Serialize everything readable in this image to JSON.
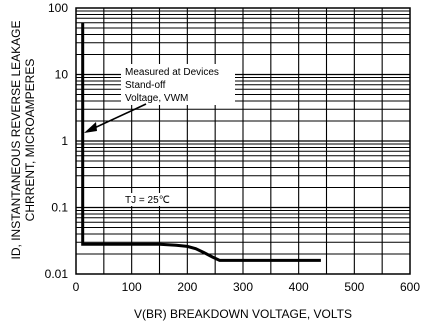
{
  "chart_data": {
    "type": "line",
    "x_scale": "linear",
    "y_scale": "log",
    "xlim": [
      0,
      600
    ],
    "ylim": [
      0.01,
      100
    ],
    "x_ticks": [
      0,
      100,
      200,
      300,
      400,
      500,
      600
    ],
    "y_ticks": [
      0.01,
      0.1,
      1,
      10,
      100
    ],
    "x_tick_labels": [
      "0",
      "100",
      "200",
      "300",
      "400",
      "500",
      "600"
    ],
    "y_tick_labels": [
      "0.01",
      "0.1",
      "1",
      "10",
      "100"
    ],
    "xlabel": "V(BR) BREAKDOWN VOLTAGE, VOLTS",
    "ylabel_line1": "ID, INSTANTANEOUS REVERSE LEAKAGE",
    "ylabel_line2": "CHRRENT, MICROAMPERES",
    "grid": true,
    "series": [
      {
        "x": [
          12,
          12,
          18,
          40,
          100,
          150,
          180,
          200,
          215,
          230,
          245,
          258,
          300,
          350,
          400,
          440
        ],
        "y": [
          60,
          0.028,
          0.028,
          0.028,
          0.028,
          0.028,
          0.027,
          0.026,
          0.024,
          0.021,
          0.018,
          0.016,
          0.016,
          0.016,
          0.016,
          0.016
        ]
      }
    ],
    "annotations": {
      "callout_line1": "Measured at Devices",
      "callout_line2": "Stand-off",
      "callout_line3": "Voltage, VWM",
      "temperature": "TJ = 25℃"
    }
  }
}
